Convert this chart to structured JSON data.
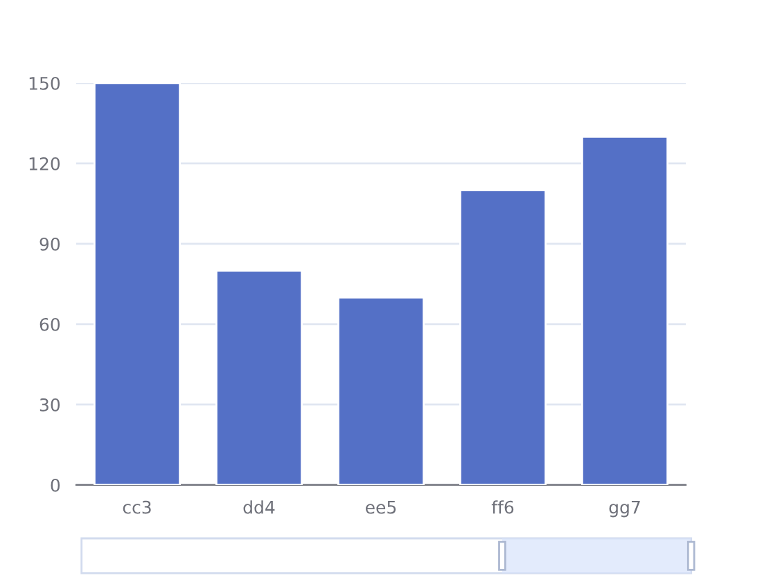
{
  "chart_data": {
    "type": "bar",
    "categories": [
      "cc3",
      "dd4",
      "ee5",
      "ff6",
      "gg7"
    ],
    "values": [
      150,
      80,
      70,
      110,
      130
    ],
    "color": "#5470c6",
    "ylim": [
      0,
      150
    ],
    "yticks": [
      0,
      30,
      60,
      90,
      120,
      150
    ],
    "grid": "y"
  }
}
